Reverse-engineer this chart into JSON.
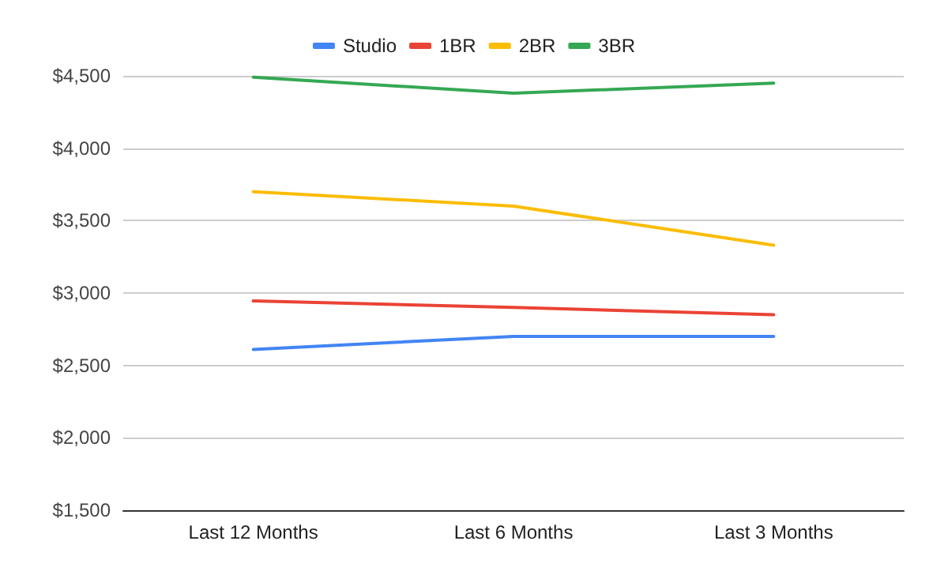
{
  "chart_data": {
    "type": "line",
    "categories": [
      "Last 12 Months",
      "Last 6 Months",
      "Last 3 Months"
    ],
    "series": [
      {
        "name": "Studio",
        "color": "#4285f4",
        "values": [
          2610,
          2700,
          2700
        ]
      },
      {
        "name": "1BR",
        "color": "#ea4335",
        "values": [
          2945,
          2900,
          2850
        ]
      },
      {
        "name": "2BR",
        "color": "#fbbc04",
        "values": [
          3700,
          3600,
          3330
        ]
      },
      {
        "name": "3BR",
        "color": "#34a853",
        "values": [
          4490,
          4380,
          4450
        ]
      }
    ],
    "ylim": [
      1500,
      4500
    ],
    "yticks": [
      {
        "value": 1500,
        "label": "$1,500"
      },
      {
        "value": 2000,
        "label": "$2,000"
      },
      {
        "value": 2500,
        "label": "$2,500"
      },
      {
        "value": 3000,
        "label": "$3,000"
      },
      {
        "value": 3500,
        "label": "$3,500"
      },
      {
        "value": 4000,
        "label": "$4,000"
      },
      {
        "value": 4500,
        "label": "$4,500"
      }
    ],
    "grid": "y",
    "legend": "top",
    "marker": "none",
    "line_style": "solid"
  }
}
